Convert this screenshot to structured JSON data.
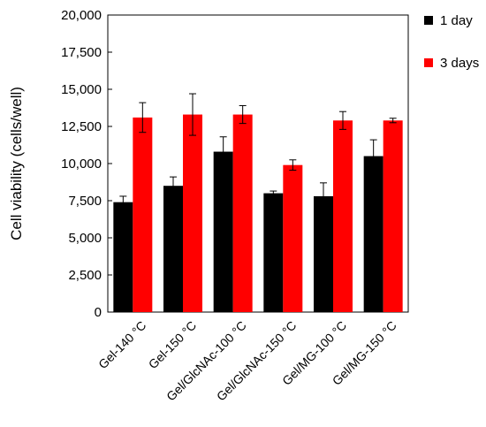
{
  "chart_data": {
    "type": "bar",
    "ylabel": "Cell viability (cells/well)",
    "ylim": [
      0,
      20000
    ],
    "yticks": [
      0,
      2500,
      5000,
      7500,
      10000,
      12500,
      15000,
      17500,
      20000
    ],
    "ytick_labels": [
      "0",
      "2,500",
      "5,000",
      "7,500",
      "10,000",
      "12,500",
      "15,000",
      "17,500",
      "20,000"
    ],
    "categories": [
      "Gel-140 °C",
      "Gel-150 °C",
      "Gel/GlcNAc-100 °C",
      "Gel/GlcNAc-150 °C",
      "Gel/MG-100 °C",
      "Gel/MG-150 °C"
    ],
    "series": [
      {
        "name": "1 day",
        "color": "#000000",
        "values": [
          7400,
          8500,
          10800,
          8000,
          7800,
          10500
        ],
        "errors": [
          400,
          600,
          1000,
          150,
          900,
          1100
        ]
      },
      {
        "name": "3 days",
        "color": "#ff0000",
        "values": [
          13100,
          13300,
          13300,
          9900,
          12900,
          12900
        ],
        "errors": [
          1000,
          1400,
          600,
          350,
          600,
          150
        ]
      }
    ],
    "legend_position": "top-right",
    "grid": false
  }
}
